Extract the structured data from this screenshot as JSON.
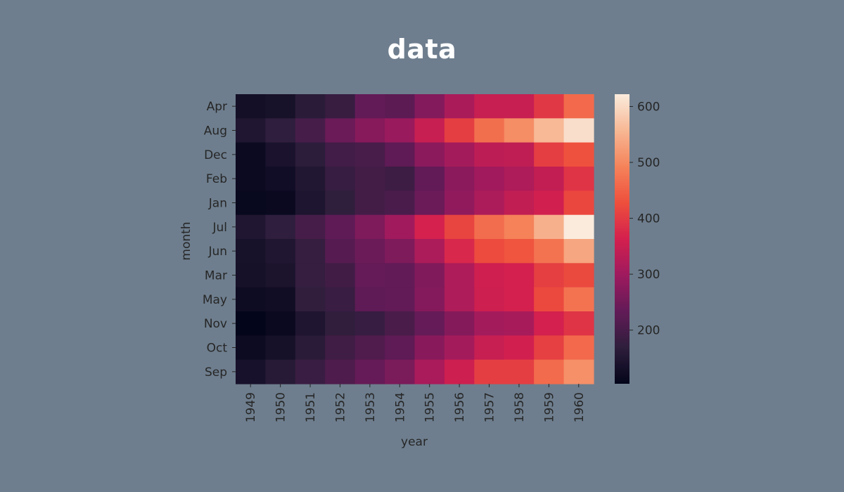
{
  "title": "data",
  "colors": {
    "background": "#6e7e8e",
    "colormap": "rocket",
    "colormap_stops": [
      "#03051a",
      "#2e1e3c",
      "#621b57",
      "#9e1a5e",
      "#d4204e",
      "#ee4f3c",
      "#f5835a",
      "#f7b894",
      "#faebdd"
    ]
  },
  "chart_data": {
    "type": "heatmap",
    "title": "",
    "xlabel": "year",
    "ylabel": "month",
    "x": [
      "1949",
      "1950",
      "1951",
      "1952",
      "1953",
      "1954",
      "1955",
      "1956",
      "1957",
      "1958",
      "1959",
      "1960"
    ],
    "y": [
      "Apr",
      "Aug",
      "Dec",
      "Feb",
      "Jan",
      "Jul",
      "Jun",
      "Mar",
      "May",
      "Nov",
      "Oct",
      "Sep"
    ],
    "values": [
      [
        129,
        135,
        163,
        181,
        235,
        227,
        269,
        313,
        348,
        348,
        396,
        461
      ],
      [
        148,
        170,
        199,
        242,
        272,
        293,
        347,
        405,
        467,
        505,
        559,
        606
      ],
      [
        118,
        140,
        166,
        194,
        201,
        229,
        278,
        306,
        336,
        337,
        405,
        432
      ],
      [
        118,
        126,
        150,
        180,
        196,
        188,
        233,
        277,
        301,
        318,
        342,
        391
      ],
      [
        112,
        115,
        145,
        171,
        196,
        204,
        242,
        284,
        315,
        340,
        360,
        417
      ],
      [
        148,
        170,
        199,
        230,
        264,
        302,
        364,
        413,
        465,
        491,
        548,
        622
      ],
      [
        135,
        149,
        178,
        218,
        243,
        264,
        315,
        374,
        422,
        435,
        472,
        535
      ],
      [
        132,
        141,
        178,
        193,
        236,
        235,
        267,
        317,
        356,
        362,
        406,
        419
      ],
      [
        121,
        125,
        172,
        183,
        229,
        234,
        270,
        318,
        355,
        363,
        420,
        472
      ],
      [
        104,
        114,
        146,
        172,
        180,
        203,
        237,
        271,
        305,
        310,
        362,
        390
      ],
      [
        119,
        133,
        162,
        191,
        211,
        229,
        274,
        306,
        347,
        359,
        407,
        461
      ],
      [
        136,
        158,
        184,
        209,
        237,
        259,
        312,
        355,
        404,
        404,
        463,
        508
      ]
    ],
    "colorbar": {
      "min": 104,
      "max": 622,
      "ticks": [
        200,
        300,
        400,
        500,
        600
      ]
    },
    "grid": false
  }
}
